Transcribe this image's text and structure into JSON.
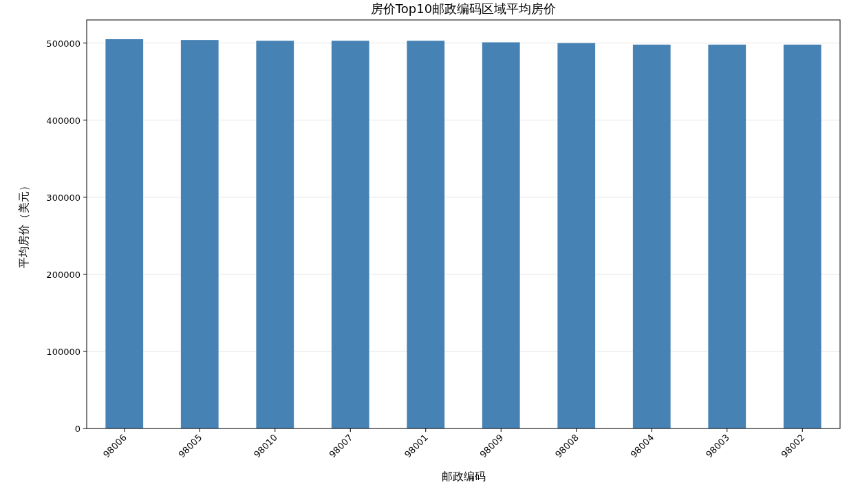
{
  "chart_data": {
    "type": "bar",
    "title": "房价Top10邮政编码区域平均房价",
    "xlabel": "邮政编码",
    "ylabel": "平均房价（美元）",
    "categories": [
      "98006",
      "98005",
      "98010",
      "98007",
      "98001",
      "98009",
      "98008",
      "98004",
      "98003",
      "98002"
    ],
    "values": [
      505000,
      504000,
      503000,
      503000,
      503000,
      501000,
      500000,
      498000,
      498000,
      498000
    ],
    "color": "#4682b4",
    "ylim": [
      0,
      530000
    ],
    "yticks": [
      0,
      100000,
      200000,
      300000,
      400000,
      500000
    ],
    "grid": "y"
  }
}
